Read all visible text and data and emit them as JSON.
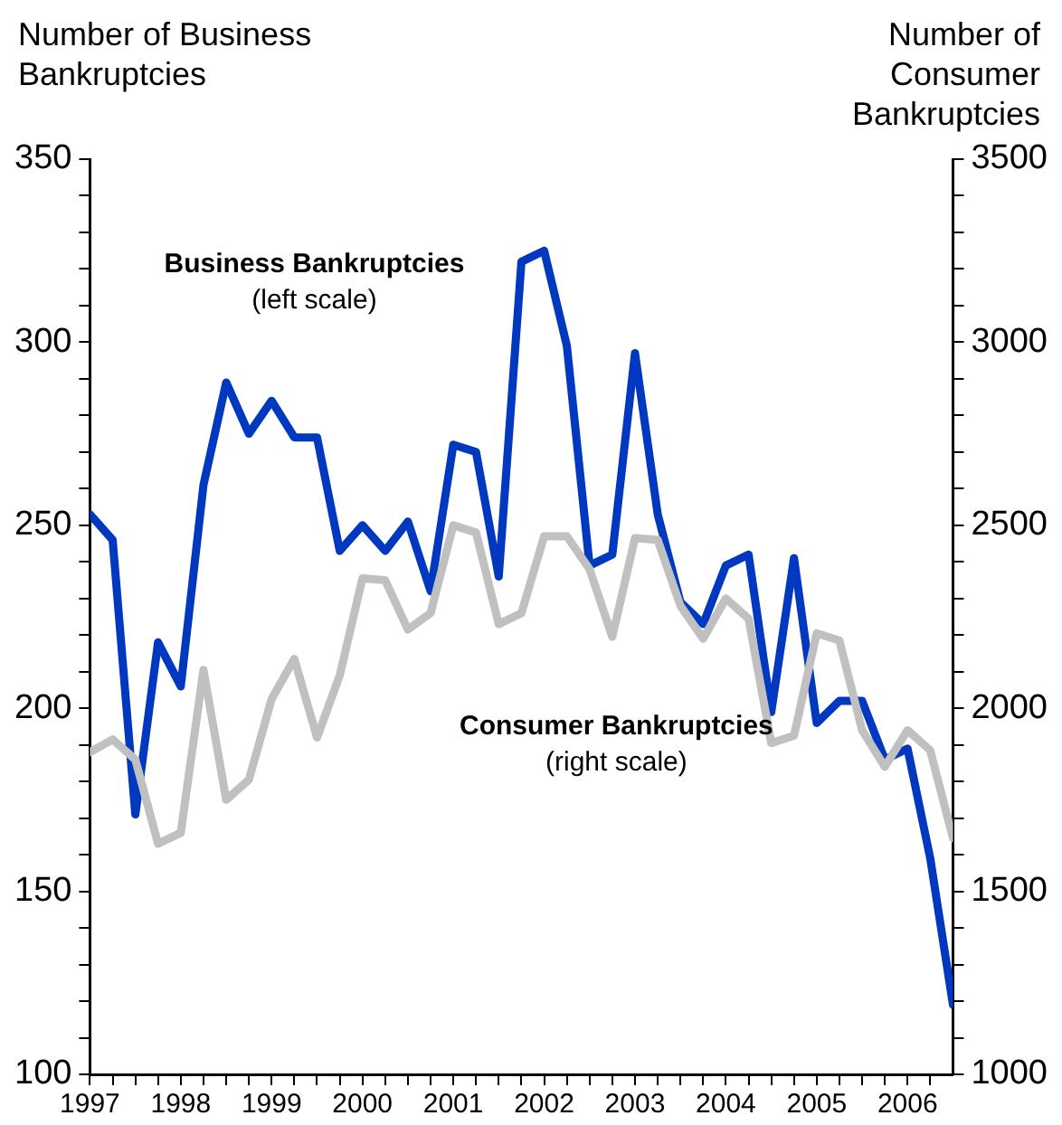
{
  "chart_data": {
    "type": "line",
    "ylabel": "Number of Business Bankruptcies",
    "y2label": "Number of Consumer Bankruptcies",
    "x": [
      1997,
      1997.25,
      1997.5,
      1997.75,
      1998,
      1998.25,
      1998.5,
      1998.75,
      1999,
      1999.25,
      1999.5,
      1999.75,
      2000,
      2000.25,
      2000.5,
      2000.75,
      2001,
      2001.25,
      2001.5,
      2001.75,
      2002,
      2002.25,
      2002.5,
      2002.75,
      2003,
      2003.25,
      2003.5,
      2003.75,
      2004,
      2004.25,
      2004.5,
      2004.75,
      2005,
      2005.25,
      2005.5,
      2005.75,
      2006,
      2006.25,
      2006.5
    ],
    "series": [
      {
        "name": "Consumer Bankruptcies",
        "color": "#c0c0c0",
        "axis": "y2",
        "values": [
          1880,
          1915,
          1860,
          1630,
          1660,
          2105,
          1750,
          1805,
          2025,
          2135,
          1920,
          2090,
          2355,
          2350,
          2215,
          2260,
          2500,
          2480,
          2230,
          2260,
          2470,
          2470,
          2380,
          2195,
          2465,
          2460,
          2280,
          2190,
          2300,
          2245,
          1905,
          1925,
          2205,
          2185,
          1940,
          1840,
          1940,
          1885,
          1645
        ]
      },
      {
        "name": "Business Bankruptcies",
        "color": "#0038c0",
        "values": [
          253,
          246,
          171,
          218,
          206,
          261,
          289,
          275,
          284,
          274,
          274,
          243,
          250,
          243,
          251,
          232,
          272,
          270,
          236,
          322,
          325,
          299,
          239,
          242,
          297,
          253,
          229,
          223,
          239,
          242,
          199,
          241,
          196,
          202,
          202,
          186,
          189,
          159,
          119
        ]
      }
    ],
    "annotations": [
      "(right scale)",
      "(left scale)"
    ],
    "xlim": [
      1997,
      2006.5
    ],
    "xticks": [
      1997,
      {
        "value": 1997.25,
        "label": null
      },
      {
        "value": 1997.5,
        "label": null
      },
      {
        "value": 1997.75,
        "label": null
      },
      1998,
      {
        "value": 1998.25,
        "label": null
      },
      {
        "value": 1998.5,
        "label": null
      },
      {
        "value": 1998.75,
        "label": null
      },
      1999,
      {
        "value": 1999.25,
        "label": null
      },
      {
        "value": 1999.5,
        "label": null
      },
      {
        "value": 1999.75,
        "label": null
      },
      2000,
      {
        "value": 2000.25,
        "label": null
      },
      {
        "value": 2000.5,
        "label": null
      },
      {
        "value": 2000.75,
        "label": null
      },
      2001,
      {
        "value": 2001.25,
        "label": null
      },
      {
        "value": 2001.5,
        "label": null
      },
      {
        "value": 2001.75,
        "label": null
      },
      2002,
      {
        "value": 2002.25,
        "label": null
      },
      {
        "value": 2002.5,
        "label": null
      },
      {
        "value": 2002.75,
        "label": null
      },
      2003,
      {
        "value": 2003.25,
        "label": null
      },
      {
        "value": 2003.5,
        "label": null
      },
      {
        "value": 2003.75,
        "label": null
      },
      2004,
      {
        "value": 2004.25,
        "label": null
      },
      {
        "value": 2004.5,
        "label": null
      },
      {
        "value": 2004.75,
        "label": null
      },
      2005,
      {
        "value": 2005.25,
        "label": null
      },
      {
        "value": 2005.5,
        "label": null
      },
      {
        "value": 2005.75,
        "label": null
      },
      2006,
      {
        "value": 2006.25,
        "label": null
      }
    ],
    "ylim": [
      100,
      350
    ],
    "yticks": [
      100,
      {
        "value": 110,
        "label": null
      },
      {
        "value": 120,
        "label": null
      },
      {
        "value": 130,
        "label": null
      },
      {
        "value": 140,
        "label": null
      },
      150,
      {
        "value": 160,
        "label": null
      },
      {
        "value": 170,
        "label": null
      },
      {
        "value": 180,
        "label": null
      },
      {
        "value": 190,
        "label": null
      },
      200,
      {
        "value": 210,
        "label": null
      },
      {
        "value": 220,
        "label": null
      },
      {
        "value": 230,
        "label": null
      },
      {
        "value": 240,
        "label": null
      },
      250,
      {
        "value": 260,
        "label": null
      },
      {
        "value": 270,
        "label": null
      },
      {
        "value": 280,
        "label": null
      },
      {
        "value": 290,
        "label": null
      },
      300,
      {
        "value": 310,
        "label": null
      },
      {
        "value": 320,
        "label": null
      },
      {
        "value": 330,
        "label": null
      },
      {
        "value": 340,
        "label": null
      },
      350
    ],
    "y2lim": [
      1000,
      3500
    ],
    "y2ticks": [
      1000,
      {
        "value": 1100,
        "label": null
      },
      {
        "value": 1200,
        "label": null
      },
      {
        "value": 1300,
        "label": null
      },
      {
        "value": 1400,
        "label": null
      },
      1500,
      {
        "value": 1600,
        "label": null
      },
      {
        "value": 1700,
        "label": null
      },
      {
        "value": 1800,
        "label": null
      },
      {
        "value": 1900,
        "label": null
      },
      2000,
      {
        "value": 2100,
        "label": null
      },
      {
        "value": 2200,
        "label": null
      },
      {
        "value": 2300,
        "label": null
      },
      {
        "value": 2400,
        "label": null
      },
      2500,
      {
        "value": 2600,
        "label": null
      },
      {
        "value": 2700,
        "label": null
      },
      {
        "value": 2800,
        "label": null
      },
      {
        "value": 2900,
        "label": null
      },
      3000,
      {
        "value": 3100,
        "label": null
      },
      {
        "value": 3200,
        "label": null
      },
      {
        "value": 3300,
        "label": null
      },
      {
        "value": 3400,
        "label": null
      },
      3500
    ],
    "grid": false,
    "legend": false,
    "marker": "none",
    "line_style": "solid"
  }
}
